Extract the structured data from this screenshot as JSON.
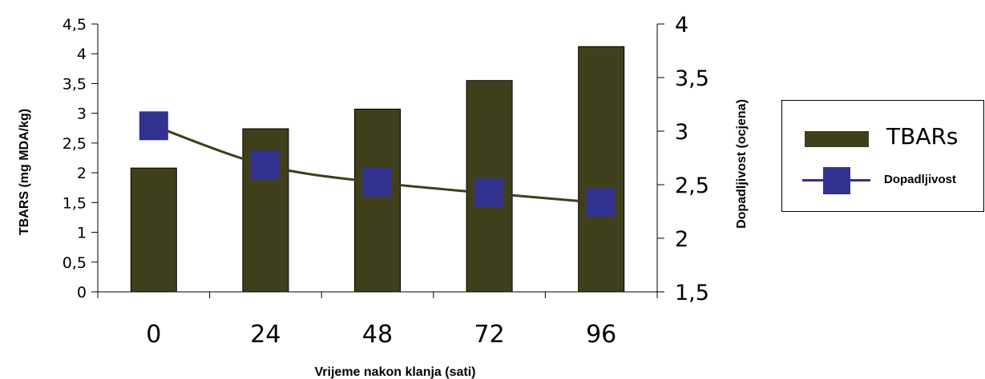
{
  "chart_data": {
    "type": "bar+line",
    "categories": [
      "0",
      "24",
      "48",
      "72",
      "96"
    ],
    "xlabel": "Vrijeme nakon klanja (sati)",
    "ylabel_left": "TBARS (mg MDA/kg)",
    "ylabel_right": "Dopadljivost (ocjena)",
    "ylim_left": [
      0,
      4.5
    ],
    "ylim_right": [
      1.5,
      4
    ],
    "yticks_left": [
      "0",
      "0,5",
      "1",
      "1,5",
      "2",
      "2,5",
      "3",
      "3,5",
      "4",
      "4,5"
    ],
    "yticks_right": [
      "1,5",
      "2",
      "2,5",
      "3",
      "3,5",
      "4"
    ],
    "series": [
      {
        "name": "TBARs",
        "kind": "bar",
        "axis": "left",
        "color": "#3f3f1c",
        "values": [
          2.08,
          2.74,
          3.07,
          3.55,
          4.12
        ]
      },
      {
        "name": "Dopadljivost",
        "kind": "line",
        "axis": "right",
        "line_color": "#3f3f1c",
        "marker_color": "#31318f",
        "values": [
          3.05,
          2.68,
          2.52,
          2.42,
          2.33
        ]
      }
    ],
    "grid": false,
    "legend_position": "right"
  }
}
